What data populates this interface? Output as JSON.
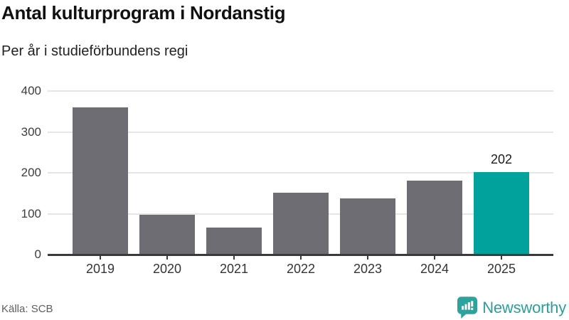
{
  "header": {
    "title": "Antal kulturprogram i Nordanstig",
    "subtitle": "Per år i studieförbundens regi"
  },
  "chart_data": {
    "type": "bar",
    "title": "Antal kulturprogram i Nordanstig",
    "subtitle": "Per år i studieförbundens regi",
    "categories": [
      "2019",
      "2020",
      "2021",
      "2022",
      "2023",
      "2024",
      "2025"
    ],
    "values": [
      360,
      97,
      66,
      152,
      137,
      181,
      202
    ],
    "highlight_index": 6,
    "annotations": [
      {
        "index": 6,
        "text": "202"
      }
    ],
    "xlabel": "",
    "ylabel": "",
    "ylim": [
      0,
      400
    ],
    "yticks": [
      0,
      100,
      200,
      300,
      400
    ],
    "grid": true,
    "legend": "none",
    "bar_color": "#6e6d73",
    "highlight_color": "#00a29b"
  },
  "footer": {
    "source": "Källa: SCB",
    "brand": "Newsworthy"
  },
  "colors": {
    "bar": "#6e6d73",
    "highlight": "#00a29b",
    "brand_teal": "#2ea29c",
    "grid": "#e6e6e6",
    "axis": "#3a3a3e",
    "tick_text": "#3d3d42",
    "title_text": "#111111",
    "source_text": "#5d5d64"
  }
}
